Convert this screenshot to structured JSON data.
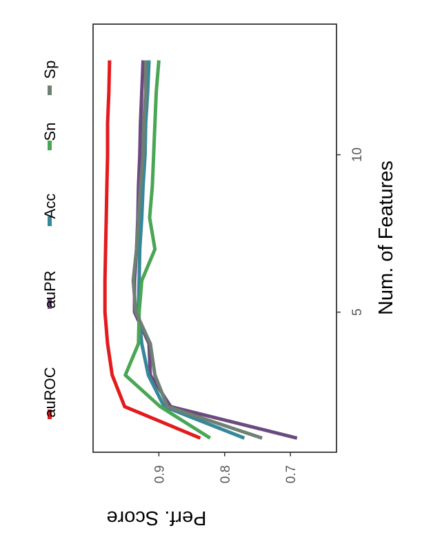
{
  "chart_data": {
    "type": "line",
    "orientation": "rotated-90",
    "title": "",
    "xlabel": "Num. of Features",
    "ylabel": "Perf. Score",
    "xlim": [
      0.55,
      14.15
    ],
    "ylim": [
      0.63,
      1.0
    ],
    "x_ticks": [
      5,
      10
    ],
    "x_tick_labels": [
      "5",
      "10"
    ],
    "y_ticks": [
      0.7,
      0.8,
      0.9
    ],
    "y_tick_labels": [
      "0.7",
      "0.8",
      "0.9"
    ],
    "grid": false,
    "legend_position": "top",
    "x": [
      1,
      2,
      3,
      4,
      5,
      6,
      7,
      8,
      9,
      10,
      11,
      12,
      13
    ],
    "series": [
      {
        "name": "auROC",
        "color": "#e41a1c",
        "values": [
          0.837,
          0.952,
          0.971,
          0.978,
          0.982,
          0.982,
          0.981,
          0.98,
          0.979,
          0.978,
          0.978,
          0.976,
          0.975
        ]
      },
      {
        "name": "auPR",
        "color": "#6a4a7f",
        "values": [
          0.69,
          0.882,
          0.913,
          0.915,
          0.937,
          0.937,
          0.934,
          0.932,
          0.931,
          0.929,
          0.928,
          0.926,
          0.924
        ]
      },
      {
        "name": "Acc",
        "color": "#35889a",
        "values": [
          0.77,
          0.892,
          0.916,
          0.926,
          0.931,
          0.93,
          0.929,
          0.926,
          0.924,
          0.921,
          0.92,
          0.917,
          0.915
        ]
      },
      {
        "name": "Sn",
        "color": "#4aa655",
        "values": [
          0.822,
          0.898,
          0.951,
          0.931,
          0.93,
          0.926,
          0.906,
          0.914,
          0.91,
          0.908,
          0.906,
          0.904,
          0.9
        ]
      },
      {
        "name": "Sp",
        "color": "#6f7f74",
        "values": [
          0.743,
          0.887,
          0.906,
          0.913,
          0.935,
          0.939,
          0.934,
          0.931,
          0.928,
          0.924,
          0.923,
          0.92,
          0.92
        ]
      }
    ]
  }
}
